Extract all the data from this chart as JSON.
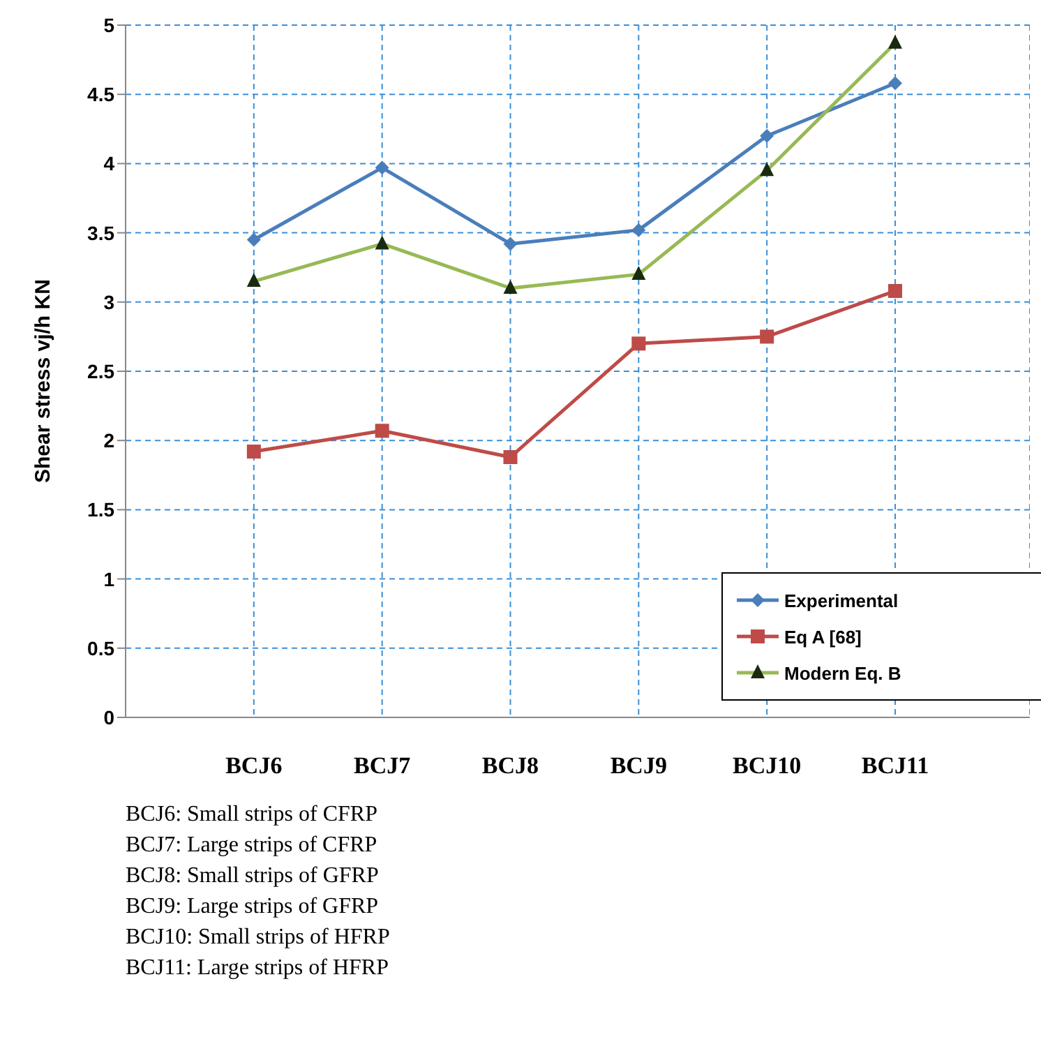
{
  "chart_data": {
    "type": "line",
    "ylabel": "Shear stress vj/h KN",
    "categories": [
      "BCJ6",
      "BCJ7",
      "BCJ8",
      "BCJ9",
      "BCJ10",
      "BCJ11"
    ],
    "series": [
      {
        "name": "Experimental",
        "color": "#4a7ebb",
        "marker": "diamond",
        "values": [
          3.45,
          3.97,
          3.42,
          3.52,
          4.2,
          4.58
        ]
      },
      {
        "name": "Eq A [68]",
        "color": "#be4b48",
        "marker": "square",
        "values": [
          1.92,
          2.07,
          1.88,
          2.7,
          2.75,
          3.08
        ]
      },
      {
        "name": "Modern Eq. B",
        "color": "#98b954",
        "marker": "triangle",
        "values": [
          3.15,
          3.42,
          3.1,
          3.2,
          3.95,
          4.87
        ]
      }
    ],
    "ylim": [
      0,
      5
    ],
    "yticks": [
      0,
      0.5,
      1,
      1.5,
      2,
      2.5,
      3,
      3.5,
      4,
      4.5,
      5
    ],
    "grid": true,
    "legend": "bottom right",
    "line_style": "solid",
    "annotations": [
      "BCJ6: Small strips of CFRP",
      "BCJ7: Large strips of CFRP",
      "BCJ8: Small strips of GFRP",
      "BCJ9: Large strips of GFRP",
      "BCJ10: Small strips of HFRP",
      "BCJ11: Large strips of HFRP"
    ]
  }
}
